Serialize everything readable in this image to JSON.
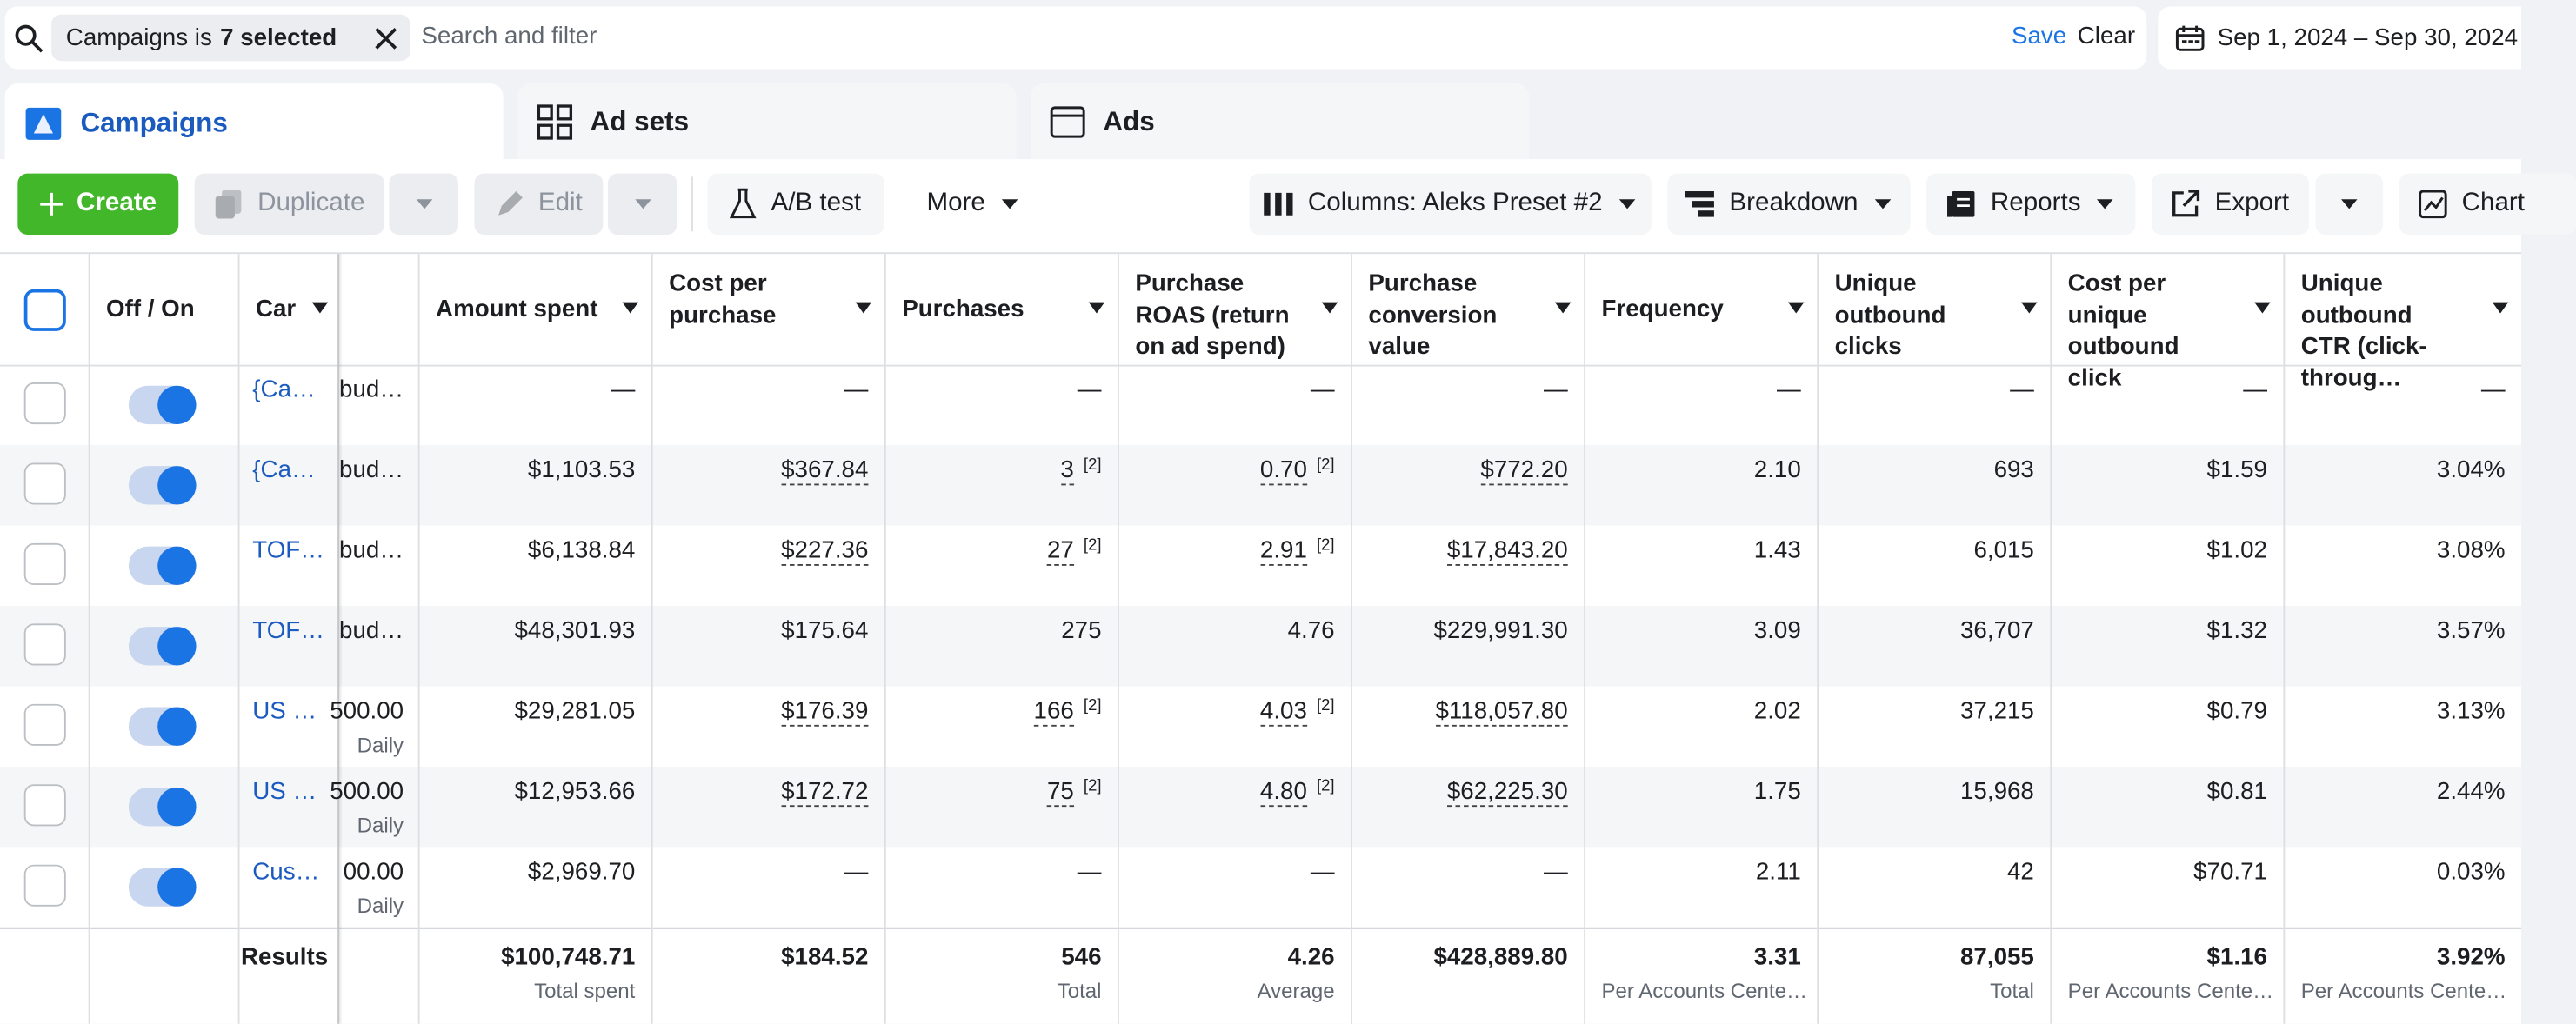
{
  "filter_bar": {
    "chip_label": "Campaigns is",
    "chip_value": "7 selected",
    "placeholder": "Search and filter",
    "save": "Save",
    "clear": "Clear",
    "date_range": "Sep 1, 2024 – Sep 30, 2024"
  },
  "tabs": [
    "Campaigns",
    "Ad sets",
    "Ads"
  ],
  "toolbar": {
    "create": "Create",
    "duplicate": "Duplicate",
    "edit": "Edit",
    "ab_test": "A/B test",
    "more": "More",
    "columns": "Columns: Aleks Preset #2",
    "breakdown": "Breakdown",
    "reports": "Reports",
    "export": "Export",
    "chart": "Chart"
  },
  "table": {
    "headers": [
      "Off / On",
      "Car",
      "Amount spent",
      "Cost per purchase",
      "Purchases",
      "Purchase ROAS (return on ad spend)",
      "Purchase conversion value",
      "Frequency",
      "Unique outbound clicks",
      "Cost per unique outbound click",
      "Unique outbound CTR (click-throug…"
    ],
    "rows": [
      {
        "name": "{Ca…",
        "budget": "bud…",
        "cells": [
          "—",
          "—",
          "—",
          "—",
          "—",
          "—",
          "—",
          "—",
          "—"
        ]
      },
      {
        "name": "{Ca…",
        "budget": "bud…",
        "cells": [
          "$1,103.53",
          "$367.84",
          {
            "text": "3",
            "note": "[2]"
          },
          {
            "text": "0.70",
            "note": "[2]"
          },
          "$772.20",
          "2.10",
          "693",
          "$1.59",
          "3.04%"
        ]
      },
      {
        "name": "TOF…",
        "budget": "bud…",
        "cells": [
          "$6,138.84",
          "$227.36",
          {
            "text": "27",
            "note": "[2]"
          },
          {
            "text": "2.91",
            "note": "[2]"
          },
          "$17,843.20",
          "1.43",
          "6,015",
          "$1.02",
          "3.08%"
        ]
      },
      {
        "name": "TOF…",
        "budget": "bud…",
        "cells": [
          "$48,301.93",
          "$175.64",
          "275",
          "4.76",
          "$229,991.30",
          "3.09",
          "36,707",
          "$1.32",
          "3.57%"
        ]
      },
      {
        "name": "US …",
        "budget": "500.00",
        "budget_type": "Daily",
        "cells": [
          "$29,281.05",
          "$176.39",
          {
            "text": "166",
            "note": "[2]"
          },
          {
            "text": "4.03",
            "note": "[2]"
          },
          "$118,057.80",
          "2.02",
          "37,215",
          "$0.79",
          "3.13%"
        ]
      },
      {
        "name": "US …",
        "budget": "500.00",
        "budget_type": "Daily",
        "cells": [
          "$12,953.66",
          "$172.72",
          {
            "text": "75",
            "note": "[2]"
          },
          {
            "text": "4.80",
            "note": "[2]"
          },
          "$62,225.30",
          "1.75",
          "15,968",
          "$0.81",
          "2.44%"
        ]
      },
      {
        "name": "Cus…",
        "budget": "00.00",
        "budget_type": "Daily",
        "cells": [
          "$2,969.70",
          "—",
          "—",
          "—",
          "—",
          "2.11",
          "42",
          "$70.71",
          "0.03%"
        ]
      }
    ],
    "totals": {
      "label": "Results",
      "cells": [
        {
          "text": "$100,748.71",
          "sub": "Total spent"
        },
        {
          "text": "$184.52"
        },
        {
          "text": "546",
          "sub": "Total"
        },
        {
          "text": "4.26",
          "sub": "Average"
        },
        {
          "text": "$428,889.80"
        },
        {
          "text": "3.31",
          "sub": "Per Accounts Cente…"
        },
        {
          "text": "87,055",
          "sub": "Total"
        },
        {
          "text": "$1.16",
          "sub": "Per Accounts Cente…"
        },
        {
          "text": "3.92%",
          "sub": "Per Accounts Cente…"
        }
      ]
    }
  }
}
